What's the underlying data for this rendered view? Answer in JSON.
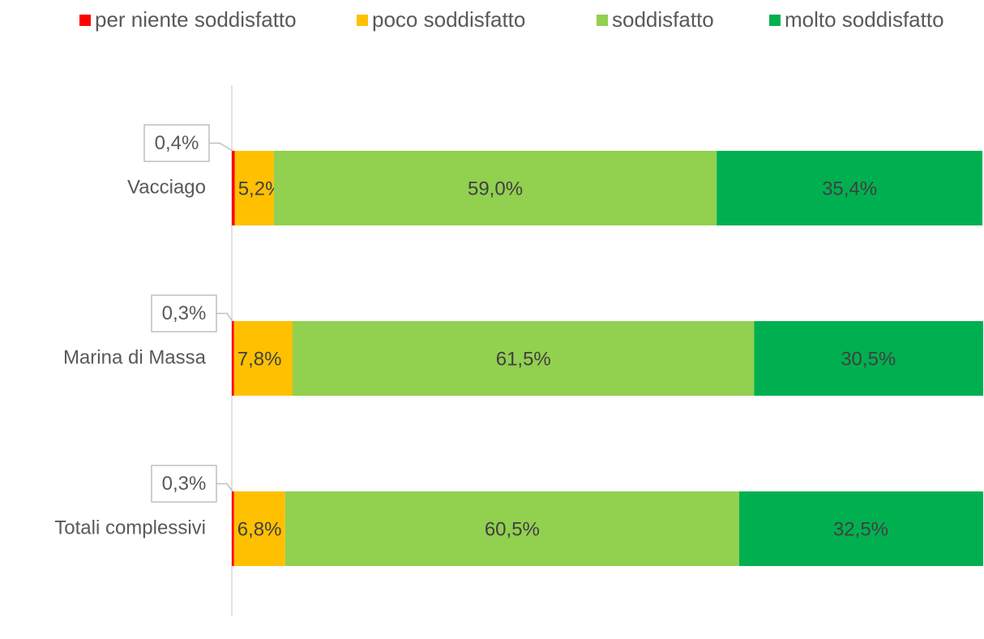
{
  "chart_data": {
    "type": "stacked-bar-horizontal",
    "categories": [
      "Vacciago",
      "Marina di Massa",
      "Totali complessivi"
    ],
    "series": [
      {
        "name": "per niente soddisfatto",
        "color": "#ff0000",
        "values": [
          0.4,
          0.3,
          0.3
        ],
        "value_labels": [
          "0,4%",
          "0,3%",
          "0,3%"
        ]
      },
      {
        "name": "poco soddisfatto",
        "color": "#ffc000",
        "values": [
          5.2,
          7.8,
          6.8
        ],
        "value_labels": [
          "5,2%",
          "7,8%",
          "6,8%"
        ]
      },
      {
        "name": "soddisfatto",
        "color": "#92d050",
        "values": [
          59.0,
          61.5,
          60.5
        ],
        "value_labels": [
          "59,0%",
          "61,5%",
          "60,5%"
        ]
      },
      {
        "name": "molto soddisfatto",
        "color": "#00b050",
        "values": [
          35.4,
          30.5,
          32.5
        ],
        "value_labels": [
          "35,4%",
          "30,5%",
          "32,5%"
        ]
      }
    ],
    "xlim": [
      0,
      100
    ],
    "legend": "top"
  }
}
